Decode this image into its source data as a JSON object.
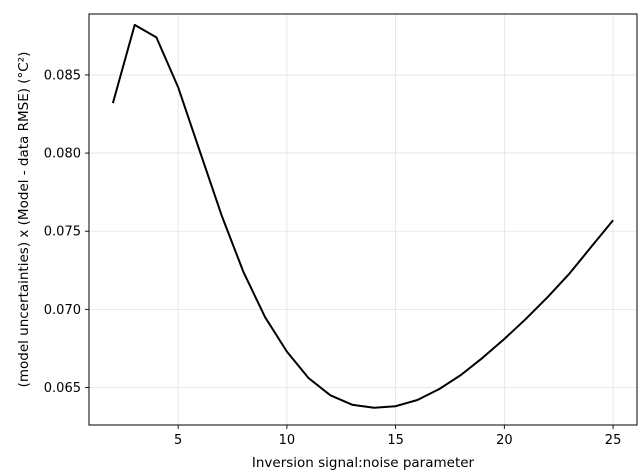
{
  "chart_data": {
    "type": "line",
    "title": "",
    "xlabel": "Inversion signal:noise parameter",
    "ylabel": "(model uncertainties) x (Model - data RMSE) (°C²)",
    "xlim": [
      0.9,
      26.1
    ],
    "ylim": [
      0.0626,
      0.0889
    ],
    "xticks": [
      5,
      10,
      15,
      20,
      25
    ],
    "xtick_labels": [
      "5",
      "10",
      "15",
      "20",
      "25"
    ],
    "yticks": [
      0.065,
      0.07,
      0.075,
      0.08,
      0.085
    ],
    "ytick_labels": [
      "0.065",
      "0.070",
      "0.075",
      "0.080",
      "0.085"
    ],
    "grid": true,
    "legend": "none",
    "series": [
      {
        "color": "#000000",
        "x": [
          2,
          3,
          4,
          5,
          6,
          7,
          8,
          9,
          10,
          11,
          12,
          13,
          14,
          15,
          16,
          17,
          18,
          19,
          20,
          21,
          22,
          23,
          24,
          25
        ],
        "y": [
          0.0832,
          0.0882,
          0.0874,
          0.0842,
          0.0801,
          0.076,
          0.0724,
          0.0695,
          0.0673,
          0.0656,
          0.0645,
          0.0639,
          0.0637,
          0.0638,
          0.0642,
          0.0649,
          0.0658,
          0.0669,
          0.0681,
          0.0694,
          0.0708,
          0.0723,
          0.074,
          0.0757
        ]
      }
    ]
  }
}
